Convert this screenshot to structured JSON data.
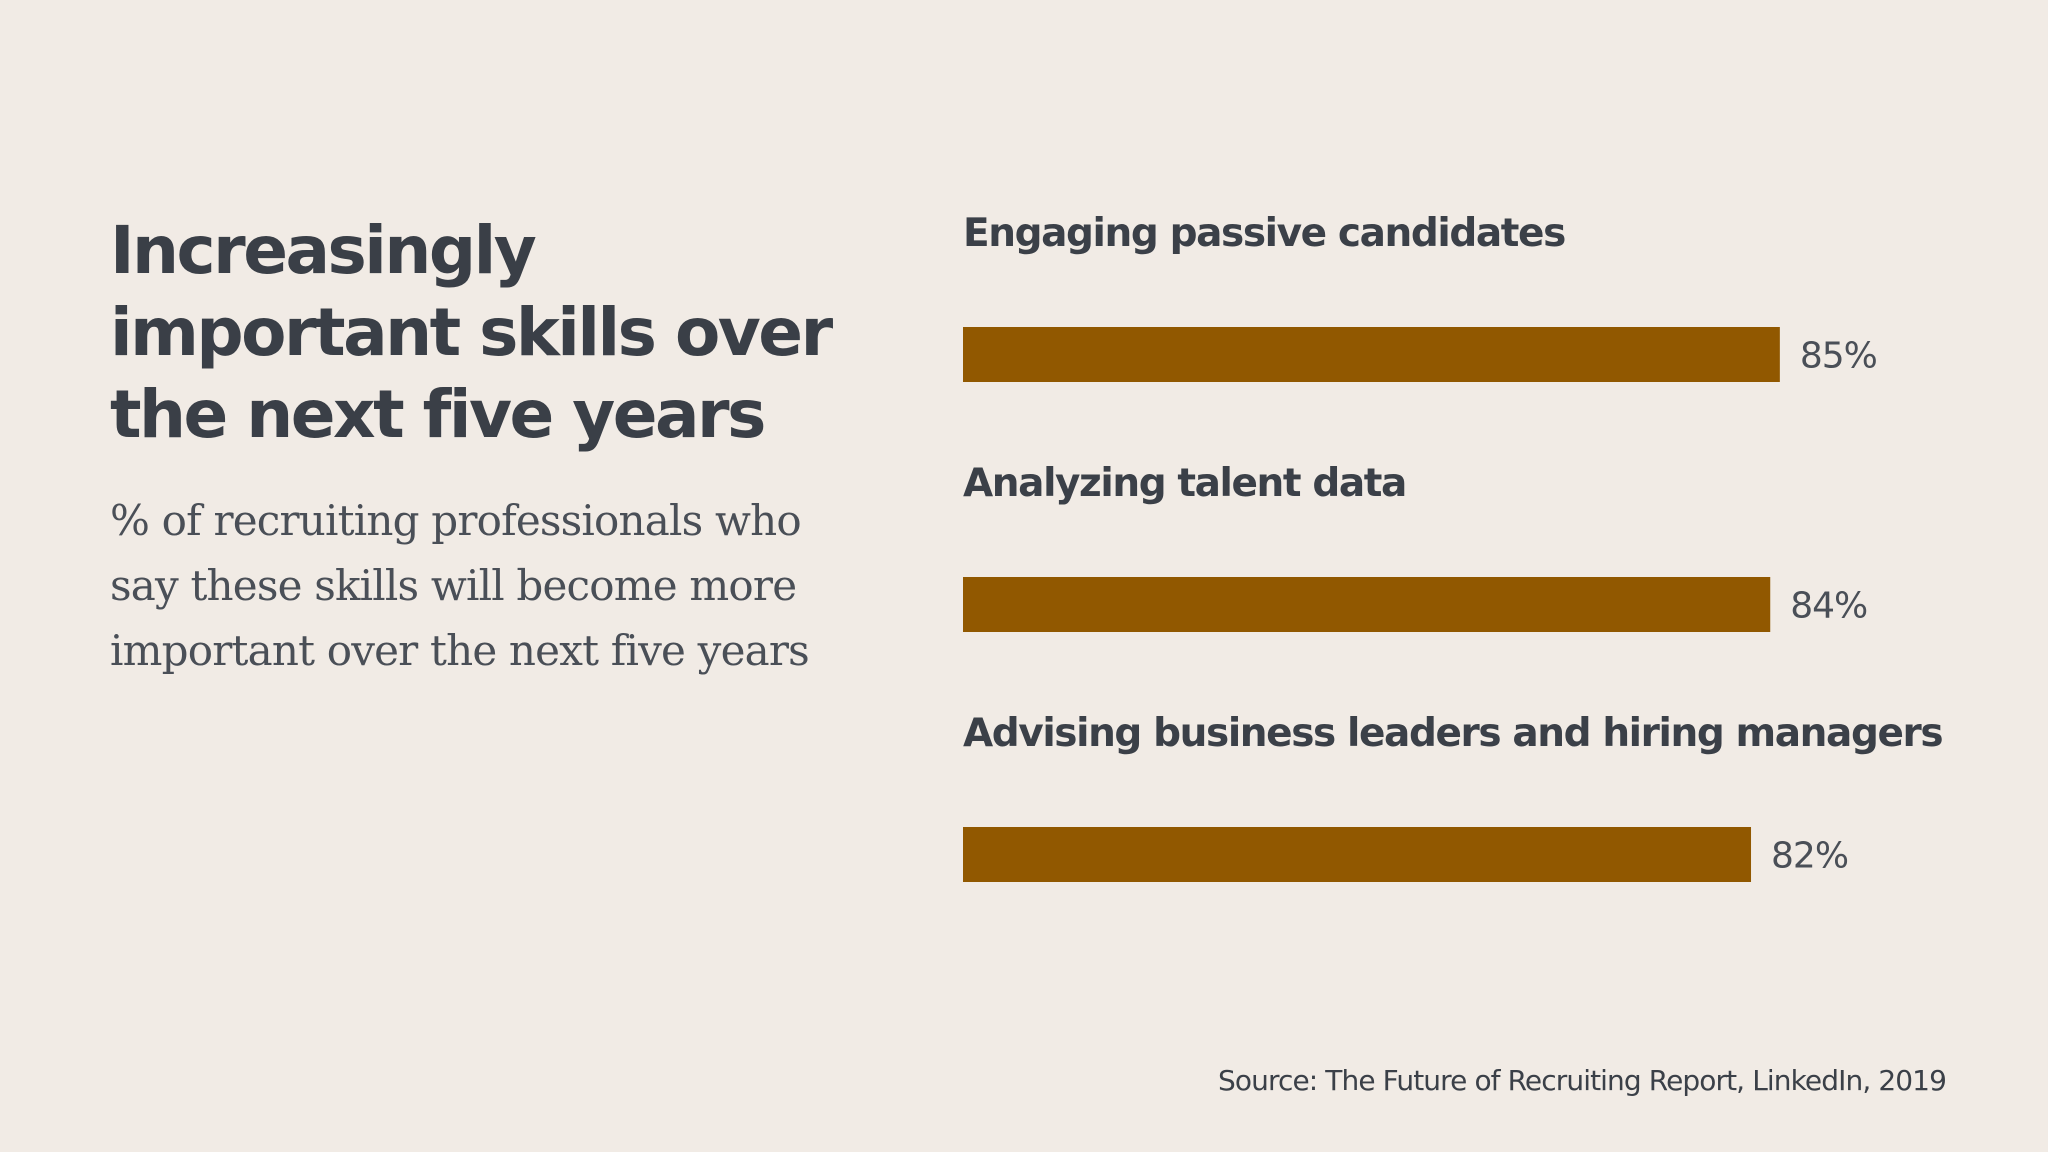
{
  "header": {
    "title": "Increasingly\nimportant skills over\nthe next five years",
    "subtitle": "% of recruiting professionals who\nsay these skills will become more\nimportant over the next five years"
  },
  "footer": {
    "source": "Source: The Future of Recruiting Report, LinkedIn, 2019"
  },
  "colors": {
    "background": "#f1ebe5",
    "bar": "#915800",
    "text": "#3b4048"
  },
  "chart_data": {
    "type": "bar",
    "orientation": "horizontal",
    "title": "Increasingly important skills over the next five years",
    "subtitle": "% of recruiting professionals who say these skills will become more important over the next five years",
    "categories": [
      "Engaging passive candidates",
      "Analyzing talent data",
      "Advising business leaders and hiring managers"
    ],
    "values": [
      85,
      84,
      82
    ],
    "value_labels": [
      "85%",
      "84%",
      "82%"
    ],
    "unit": "%",
    "xlim": [
      0,
      100
    ],
    "grid": false,
    "legend": "none"
  }
}
